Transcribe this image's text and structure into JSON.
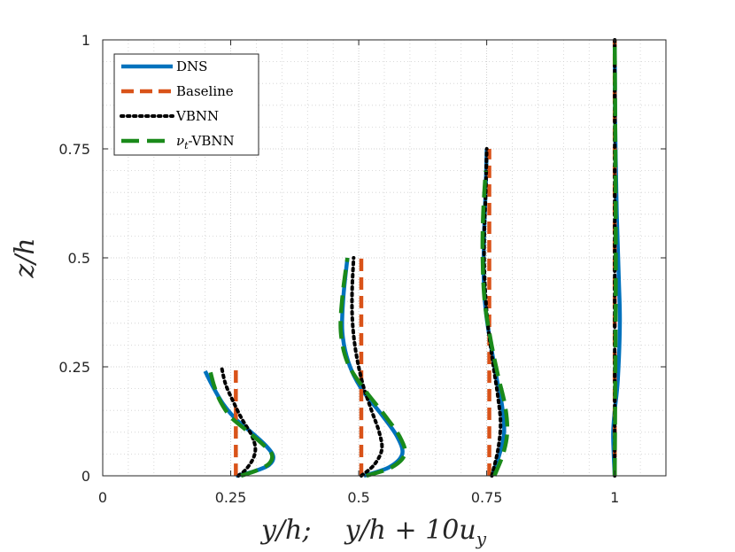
{
  "chart_data": {
    "type": "line",
    "xlabel": "y/h;    y/h + 10u",
    "xlabel_sub": "y",
    "ylabel": "z/h",
    "xlim": [
      0,
      1.1
    ],
    "ylim": [
      0,
      1
    ],
    "xticks": [
      0,
      0.25,
      0.5,
      0.75,
      1
    ],
    "xtick_labels": [
      "0",
      "0.25",
      "0.5",
      "0.75",
      "1"
    ],
    "yticks": [
      0,
      0.25,
      0.5,
      0.75,
      1
    ],
    "ytick_labels": [
      "0",
      "0.25",
      "0.5",
      "0.75",
      "1"
    ],
    "grid": true,
    "minor_grid": true,
    "legend_position": "top-left",
    "legend": [
      {
        "name": "DNS",
        "color": "#0072BD",
        "style": "solid"
      },
      {
        "name": "Baseline",
        "color": "#D95319",
        "style": "dashed"
      },
      {
        "name": "VBNN",
        "color": "#000000",
        "style": "dotted"
      },
      {
        "name_prefix": "ν",
        "name_sub": "t",
        "name_suffix": "-VBNN",
        "color": "#1a8a1a",
        "style": "dashed-long"
      }
    ],
    "series": [
      {
        "group": "DNS",
        "curves": [
          {
            "x": [
              0.26,
              0.295,
              0.325,
              0.333,
              0.318,
              0.29,
              0.26,
              0.235,
              0.215,
              0.2
            ],
            "y": [
              0,
              0.01,
              0.025,
              0.045,
              0.07,
              0.1,
              0.13,
              0.165,
              0.205,
              0.24
            ]
          },
          {
            "x": [
              0.51,
              0.56,
              0.585,
              0.575,
              0.545,
              0.505,
              0.48,
              0.468,
              0.47,
              0.478
            ],
            "y": [
              0,
              0.02,
              0.05,
              0.09,
              0.14,
              0.2,
              0.26,
              0.33,
              0.41,
              0.5
            ]
          },
          {
            "x": [
              0.76,
              0.775,
              0.784,
              0.78,
              0.77,
              0.758,
              0.748,
              0.744,
              0.745,
              0.748,
              0.75
            ],
            "y": [
              0,
              0.05,
              0.1,
              0.16,
              0.22,
              0.3,
              0.38,
              0.46,
              0.56,
              0.66,
              0.75
            ]
          },
          {
            "x": [
              1.0,
              0.998,
              0.997,
              1.0,
              1.006,
              1.01,
              1.008,
              1.004,
              1.001,
              1.0
            ],
            "y": [
              0,
              0.05,
              0.1,
              0.15,
              0.22,
              0.35,
              0.45,
              0.6,
              0.8,
              1.0
            ]
          }
        ]
      },
      {
        "group": "Baseline",
        "curves": [
          {
            "x": [
              0.26,
              0.26
            ],
            "y": [
              0,
              0.25
            ]
          },
          {
            "x": [
              0.505,
              0.505
            ],
            "y": [
              0,
              0.5
            ]
          },
          {
            "x": [
              0.755,
              0.755
            ],
            "y": [
              0,
              0.75
            ]
          },
          {
            "x": [
              1.0,
              1.0
            ],
            "y": [
              0,
              1.0
            ]
          }
        ]
      },
      {
        "group": "VBNN",
        "curves": [
          {
            "x": [
              0.265,
              0.28,
              0.294,
              0.298,
              0.29,
              0.272,
              0.255,
              0.24,
              0.232
            ],
            "y": [
              0,
              0.015,
              0.04,
              0.065,
              0.095,
              0.13,
              0.17,
              0.21,
              0.25
            ]
          },
          {
            "x": [
              0.505,
              0.53,
              0.545,
              0.54,
              0.525,
              0.508,
              0.495,
              0.488,
              0.487,
              0.49
            ],
            "y": [
              0,
              0.025,
              0.06,
              0.1,
              0.15,
              0.21,
              0.28,
              0.35,
              0.42,
              0.5
            ]
          },
          {
            "x": [
              0.76,
              0.772,
              0.777,
              0.772,
              0.762,
              0.752,
              0.746,
              0.745,
              0.748,
              0.75
            ],
            "y": [
              0,
              0.06,
              0.12,
              0.18,
              0.26,
              0.35,
              0.45,
              0.55,
              0.65,
              0.75
            ]
          },
          {
            "x": [
              1.0,
              1.0,
              1.0,
              1.0
            ],
            "y": [
              0,
              0.3,
              0.6,
              1.0
            ]
          }
        ]
      },
      {
        "group": "nu_t-VBNN",
        "curves": [
          {
            "x": [
              0.27,
              0.3,
              0.325,
              0.33,
              0.31,
              0.28,
              0.25,
              0.23,
              0.218,
              0.21
            ],
            "y": [
              0,
              0.012,
              0.028,
              0.05,
              0.075,
              0.105,
              0.135,
              0.17,
              0.205,
              0.24
            ]
          },
          {
            "x": [
              0.515,
              0.565,
              0.59,
              0.58,
              0.55,
              0.51,
              0.478,
              0.465,
              0.468,
              0.478
            ],
            "y": [
              0,
              0.02,
              0.05,
              0.09,
              0.14,
              0.2,
              0.26,
              0.33,
              0.41,
              0.5
            ]
          },
          {
            "x": [
              0.765,
              0.782,
              0.79,
              0.786,
              0.772,
              0.758,
              0.746,
              0.742,
              0.743,
              0.748
            ],
            "y": [
              0,
              0.05,
              0.1,
              0.16,
              0.23,
              0.31,
              0.4,
              0.5,
              0.6,
              0.7
            ]
          },
          {
            "x": [
              1.0,
              1.001,
              1.002,
              1.001,
              1.0
            ],
            "y": [
              0,
              0.2,
              0.5,
              0.8,
              1.0
            ]
          }
        ]
      }
    ]
  }
}
